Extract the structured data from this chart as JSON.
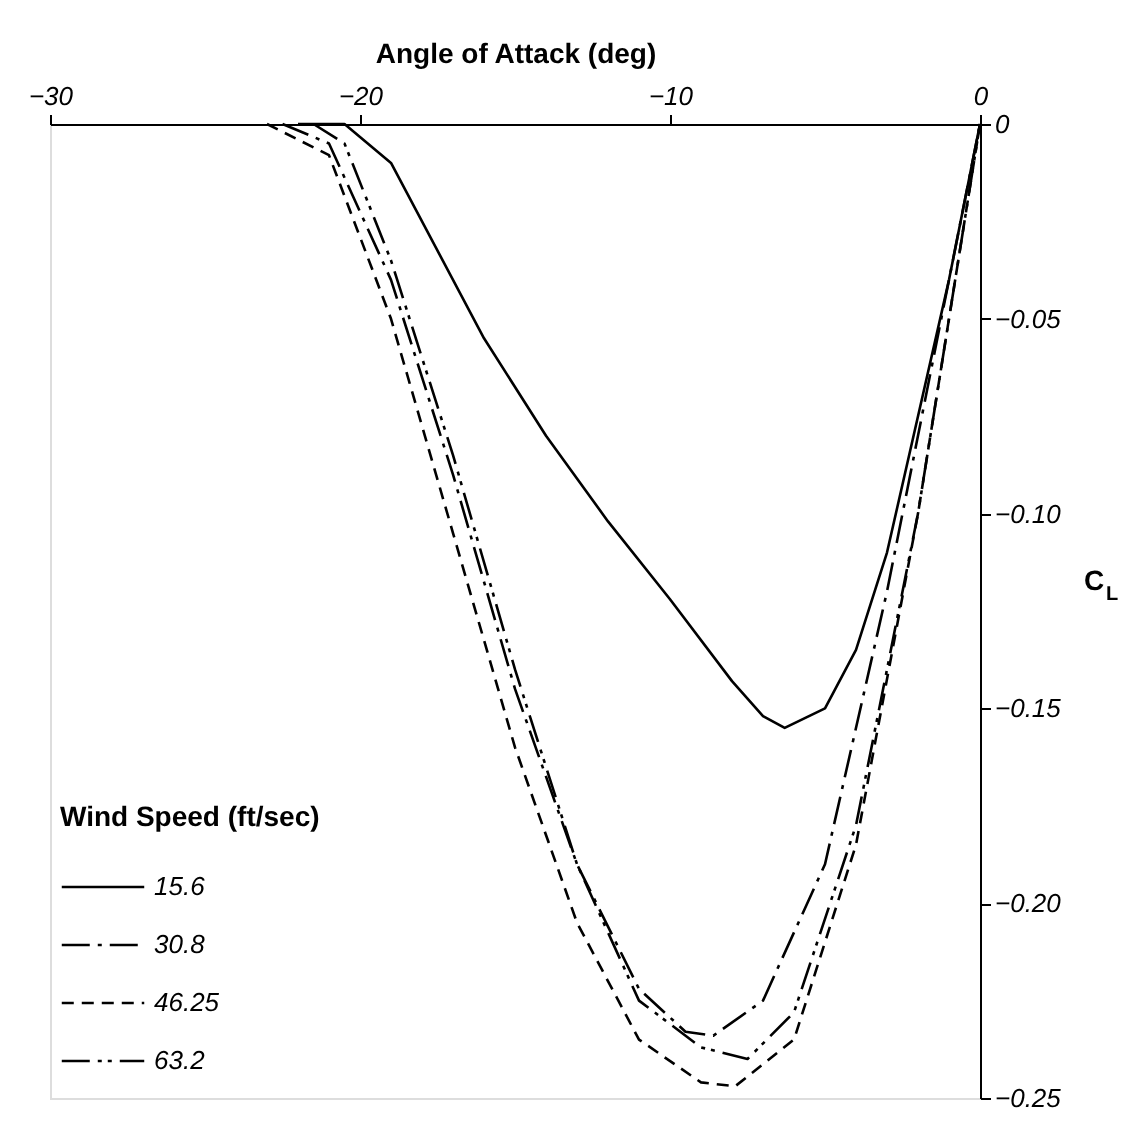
{
  "chart_data": {
    "type": "line",
    "xlabel": "Angle of Attack (deg)",
    "ylabel": "C$_{L}$",
    "legend_title": "Wind Speed (ft/sec)",
    "xlim": [
      -30,
      0
    ],
    "xticks": [
      -30,
      -20,
      -10,
      0
    ],
    "ylim": [
      -0.25,
      0
    ],
    "yticks": [
      -0.25,
      {
        "value": -0.2,
        "label": "−0.20"
      },
      -0.15,
      {
        "value": -0.1,
        "label": "−0.10"
      },
      -0.05,
      {
        "value": 0,
        "label": "0"
      }
    ],
    "grid": false,
    "legend": "bottom left",
    "marker": "none",
    "series": [
      {
        "name": "15.6",
        "color": "#000000",
        "line_style": "solid",
        "x": [
          -22,
          -20.5,
          -19,
          -18,
          -16,
          -14,
          -12,
          -10,
          -8,
          -7,
          -6.3,
          -5,
          -4,
          -3,
          -2,
          -1,
          0
        ],
        "values": [
          0,
          0,
          -0.01,
          -0.025,
          -0.055,
          -0.08,
          -0.102,
          -0.122,
          -0.143,
          -0.152,
          -0.155,
          -0.15,
          -0.135,
          -0.11,
          -0.075,
          -0.04,
          0
        ]
      },
      {
        "name": "30.8",
        "color": "#000000",
        "line_style": "dashdot",
        "x": [
          -22.5,
          -21,
          -19,
          -17,
          -15,
          -13,
          -11,
          -9.5,
          -8.6,
          -7,
          -5,
          -3,
          -1.5,
          0
        ],
        "values": [
          0,
          -0.005,
          -0.04,
          -0.09,
          -0.145,
          -0.19,
          -0.222,
          -0.233,
          -0.234,
          -0.225,
          -0.19,
          -0.12,
          -0.06,
          0
        ]
      },
      {
        "name": "46.25",
        "color": "#000000",
        "line_style": "dashed",
        "x": [
          -23,
          -21,
          -19,
          -17,
          -15,
          -13,
          -11,
          -9,
          -7.9,
          -6,
          -4,
          -2,
          -1,
          0
        ],
        "values": [
          0,
          -0.008,
          -0.05,
          -0.105,
          -0.16,
          -0.205,
          -0.235,
          -0.246,
          -0.247,
          -0.235,
          -0.185,
          -0.1,
          -0.05,
          0
        ]
      },
      {
        "name": "63.2",
        "color": "#000000",
        "line_style": "dashdotdot",
        "x": [
          -21.5,
          -20.5,
          -19,
          -17,
          -15,
          -13,
          -11,
          -9,
          -7.5,
          -6,
          -4,
          -2,
          0
        ],
        "values": [
          0,
          -0.005,
          -0.035,
          -0.085,
          -0.14,
          -0.19,
          -0.225,
          -0.237,
          -0.24,
          -0.228,
          -0.18,
          -0.1,
          0
        ]
      }
    ]
  }
}
